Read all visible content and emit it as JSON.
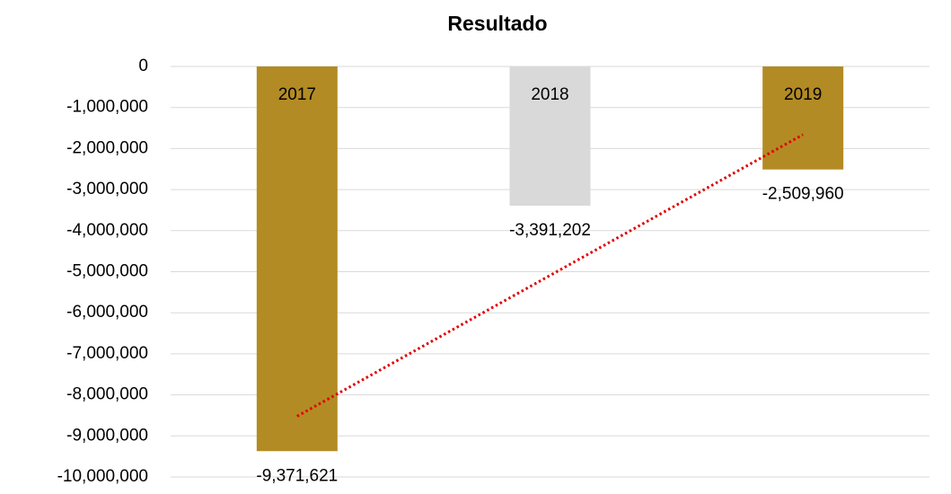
{
  "chart_data": {
    "type": "bar",
    "title": "Resultado",
    "categories": [
      "2017",
      "2018",
      "2019"
    ],
    "values": [
      -9371621,
      -3391202,
      -2509960
    ],
    "value_labels": [
      "-9,371,621",
      "-3,391,202",
      "-2,509,960"
    ],
    "colors": [
      "#b38b24",
      "#d9d9d9",
      "#b38b24"
    ],
    "ylim": [
      -10000000,
      0
    ],
    "yticks": [
      0,
      {
        "value": -1000000,
        "label": "-1,000,000"
      },
      {
        "value": -2000000,
        "label": "-2,000,000"
      },
      {
        "value": -3000000,
        "label": "-3,000,000"
      },
      {
        "value": -4000000,
        "label": "-4,000,000"
      },
      {
        "value": -5000000,
        "label": "-5,000,000"
      },
      {
        "value": -6000000,
        "label": "-6,000,000"
      },
      {
        "value": -7000000,
        "label": "-7,000,000"
      },
      {
        "value": -8000000,
        "label": "-8,000,000"
      },
      {
        "value": -9000000,
        "label": "-9,000,000"
      },
      {
        "value": -10000000,
        "label": "-10,000,000"
      }
    ],
    "grid": true,
    "trendline": {
      "type": "linear",
      "color": "#e00000",
      "style": "dotted"
    }
  }
}
